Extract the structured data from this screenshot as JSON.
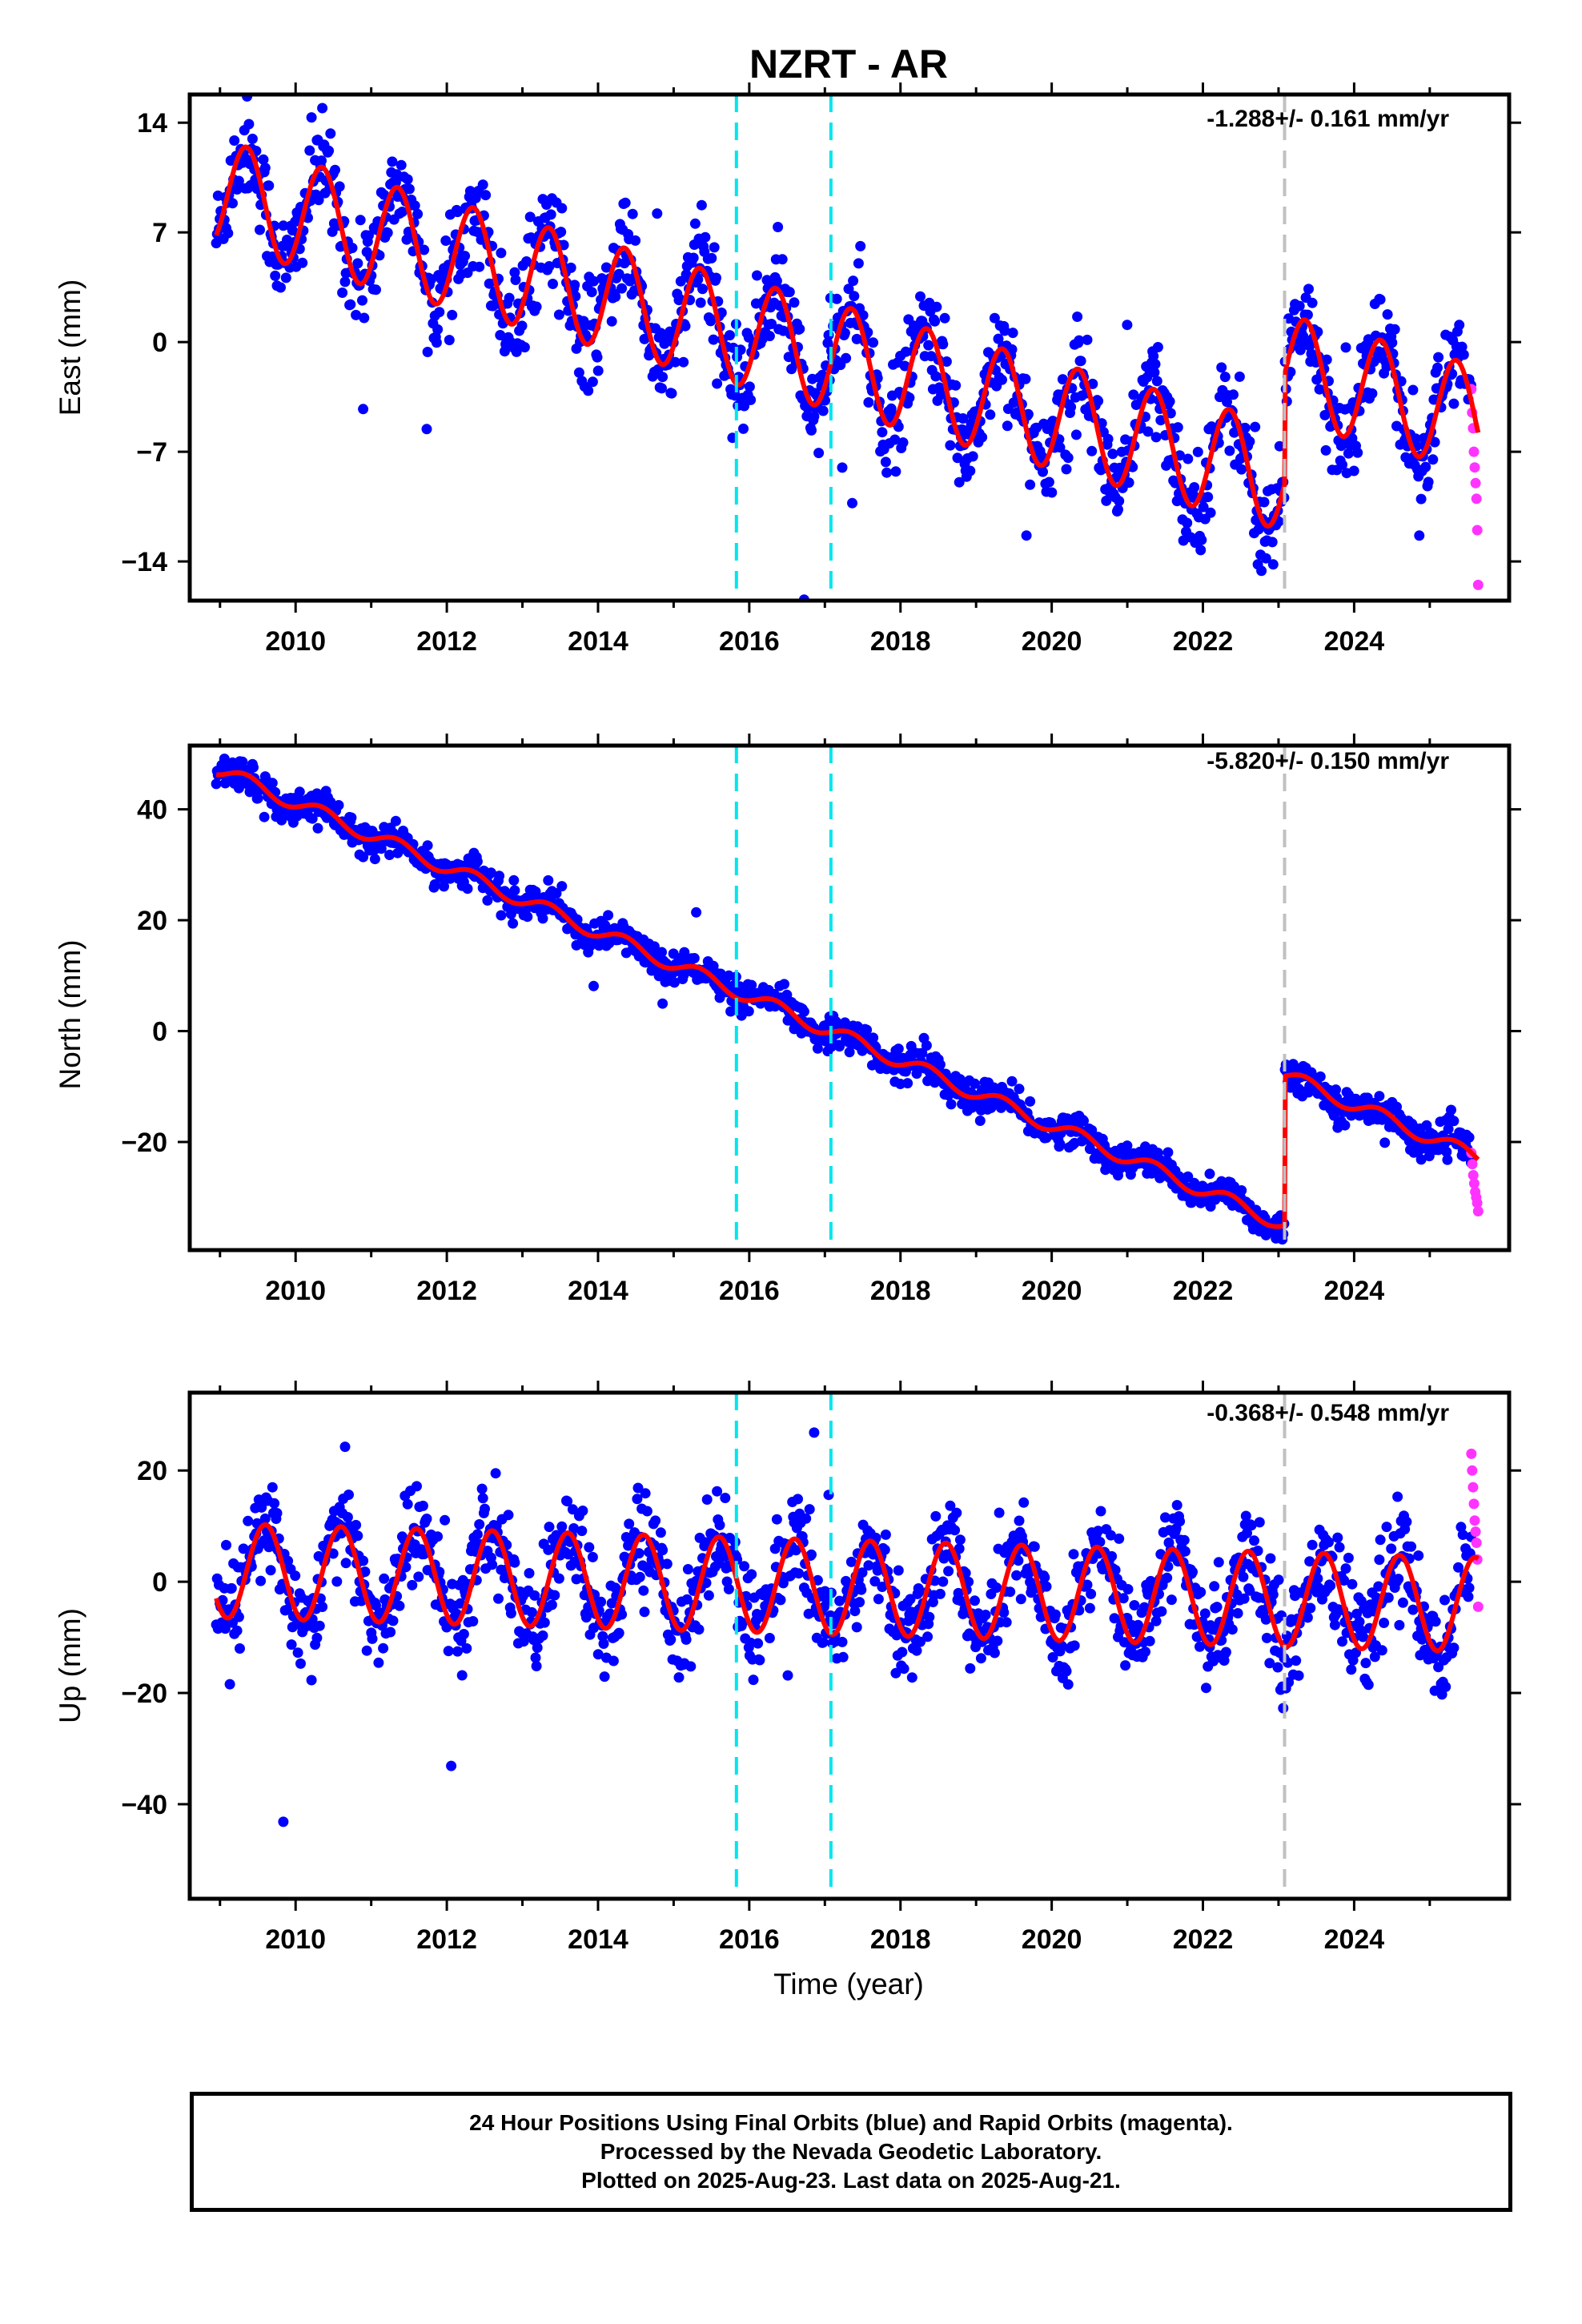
{
  "chart_data": {
    "type": "scatter",
    "title": "NZRT - AR",
    "xlabel": "Time (year)",
    "xlim": [
      2008.6,
      2026.05
    ],
    "x_ticks": [
      "2010",
      "2012",
      "2014",
      "2016",
      "2018",
      "2020",
      "2022",
      "2024"
    ],
    "first_data_year": 2008.95,
    "last_data_year": 2025.64,
    "rapid_orbits_start_year": 2025.55,
    "event_lines": [
      {
        "year": 2015.83,
        "color": "#00e5ee",
        "style": "dashed"
      },
      {
        "year": 2017.08,
        "color": "#00e5ee",
        "style": "dashed"
      },
      {
        "year": 2023.08,
        "color": "#c0c0c0",
        "style": "dashed"
      }
    ],
    "series_colors": {
      "final_orbits": "#0000ff",
      "rapid_orbits": "#ff33ff",
      "model": "#ff0000"
    },
    "grid": false,
    "panels": [
      {
        "name": "east",
        "ylabel": "East (mm)",
        "ylim": [
          -16.5,
          15.8
        ],
        "y_ticks": [
          14,
          7,
          0,
          -7,
          -14
        ],
        "y_tick_labels": [
          "14",
          "7",
          "0",
          "−7",
          "−14"
        ],
        "rate_label": "-1.288+/- 0.161 mm/yr",
        "rate_mm_per_yr": -1.288,
        "model": {
          "offset_at_2009": 9.5,
          "annual_amplitude": 3.4,
          "annual_phase_year": 2009.35,
          "jump_year": 2023.08,
          "jump_mm": 7.0,
          "noise_mm": 1.6
        },
        "rapid_points": [
          -3.0,
          -4.5,
          -5.5,
          -7.0,
          -8.0,
          -9.0,
          -10.0,
          -12.0,
          -15.5
        ]
      },
      {
        "name": "north",
        "ylabel": "North (mm)",
        "ylim": [
          -39.5,
          51.5
        ],
        "y_ticks": [
          40,
          20,
          0,
          -20
        ],
        "y_tick_labels": [
          "40",
          "20",
          "0",
          "−20"
        ],
        "rate_label": "-5.820+/- 0.150 mm/yr",
        "rate_mm_per_yr": -5.82,
        "model": {
          "offset_at_2009": 47.0,
          "annual_amplitude": 1.3,
          "annual_phase_year": 2009.35,
          "jump_year": 2023.08,
          "jump_mm": 27.0,
          "noise_mm": 1.4
        },
        "rapid_points": [
          -22.0,
          -24.0,
          -26.0,
          -27.5,
          -29.0,
          -30.0,
          -31.0,
          -32.5
        ]
      },
      {
        "name": "up",
        "ylabel": "Up (mm)",
        "ylim": [
          -57.0,
          34.0
        ],
        "y_ticks": [
          20,
          0,
          -20,
          -40
        ],
        "y_tick_labels": [
          "20",
          "0",
          "−20",
          "−40"
        ],
        "rate_label": "-0.368+/- 0.548 mm/yr",
        "rate_mm_per_yr": -0.368,
        "model": {
          "offset_at_2009": 2.0,
          "annual_amplitude": 8.5,
          "annual_phase_year": 2009.6,
          "jump_year": 2023.08,
          "jump_mm": 0.0,
          "noise_mm": 4.5
        },
        "rapid_points": [
          23.0,
          20.0,
          17.0,
          14.0,
          11.0,
          9.0,
          7.0,
          4.0,
          -4.5
        ]
      }
    ]
  },
  "footer": {
    "line1": "24 Hour Positions Using Final Orbits (blue) and Rapid Orbits (magenta).",
    "line2": "Processed by the Nevada Geodetic Laboratory.",
    "line3": "Plotted on 2025-Aug-23. Last data on 2025-Aug-21."
  }
}
